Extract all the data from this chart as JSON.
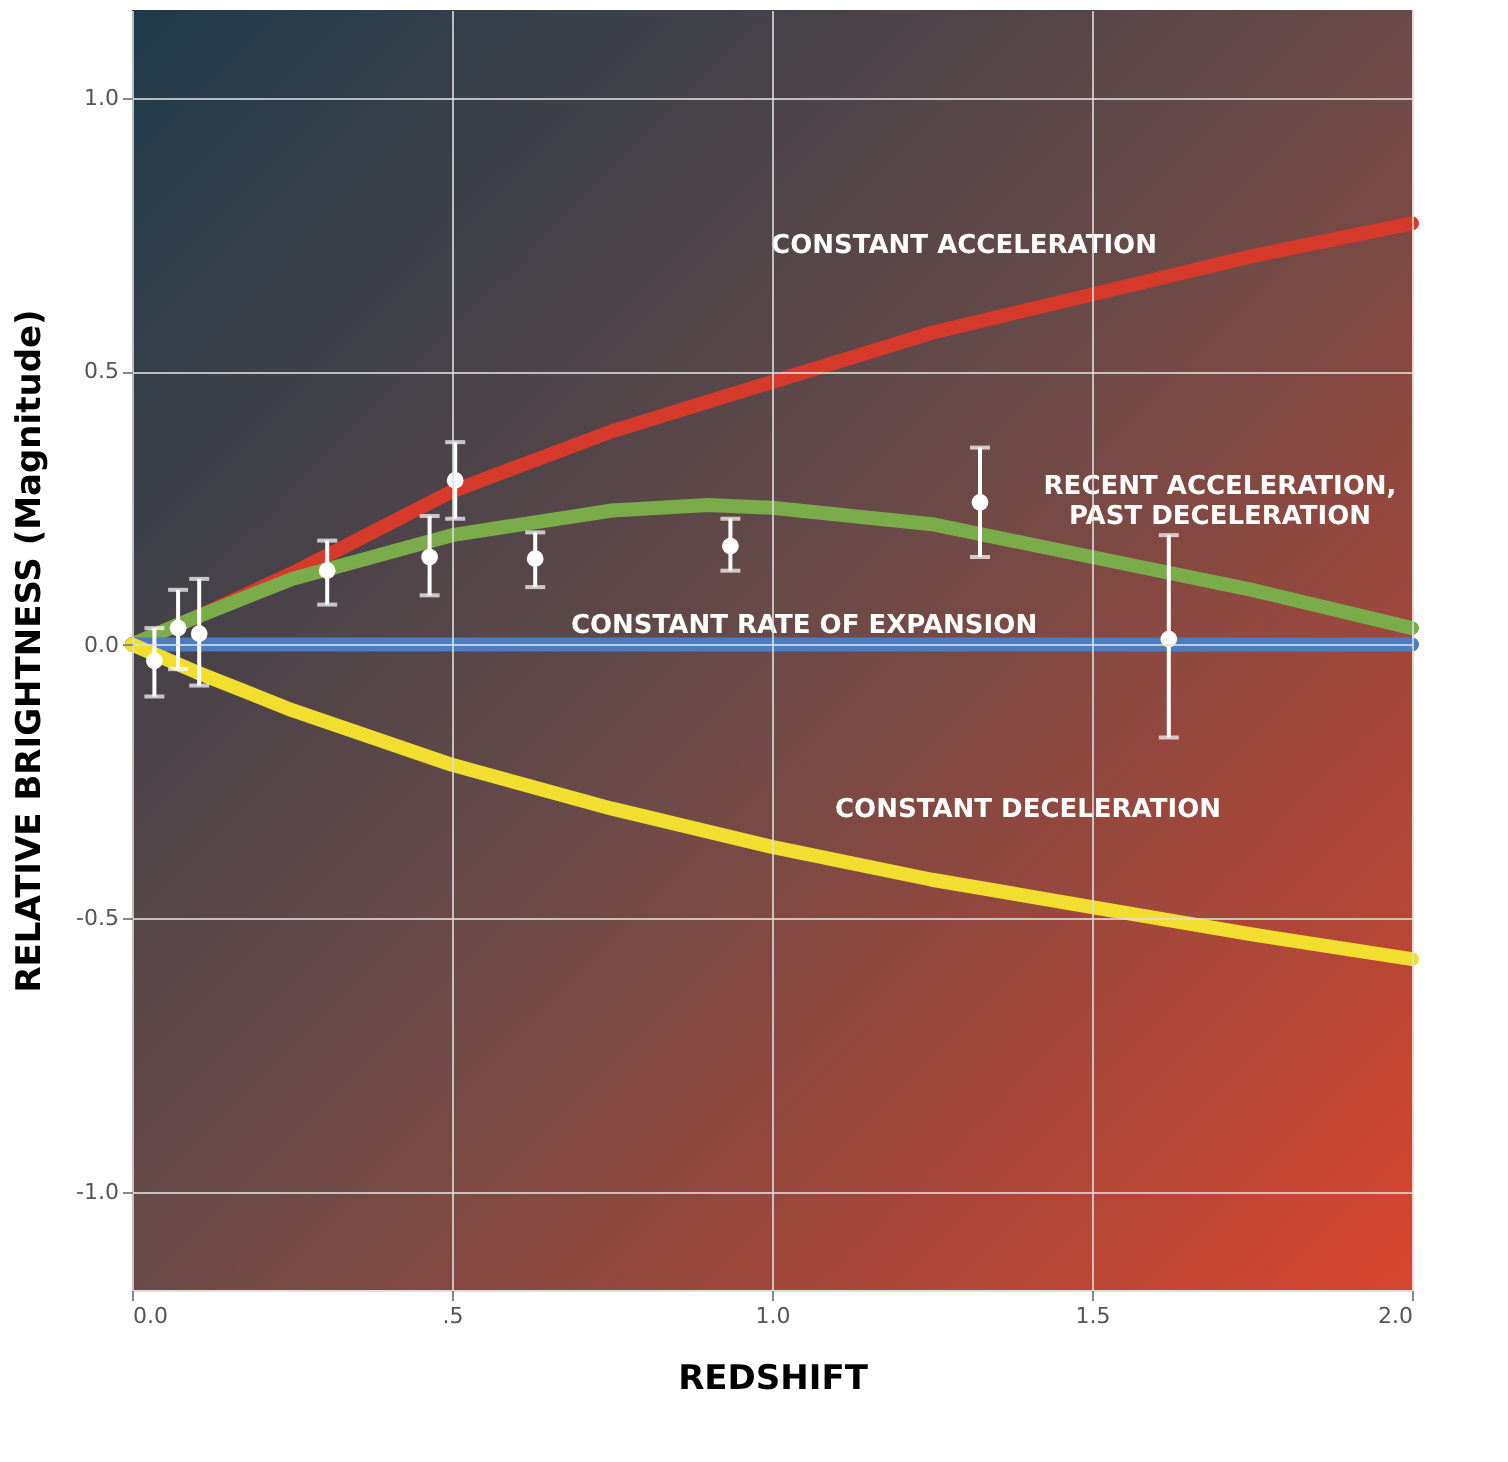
{
  "chart_data": {
    "type": "line",
    "xlabel": "REDSHIFT",
    "ylabel": "RELATIVE BRIGHTNESS (Magnitude)",
    "xlim": [
      0,
      2.0
    ],
    "ylim": [
      -1.18,
      1.16
    ],
    "xticks": [
      {
        "value": 0,
        "label": "0.0"
      },
      {
        "value": 0.5,
        "label": ".5"
      },
      {
        "value": 1.0,
        "label": "1.0"
      },
      {
        "value": 1.5,
        "label": "1.5"
      },
      {
        "value": 2.0,
        "label": "2.0"
      }
    ],
    "yticks": [
      {
        "value": -1.0,
        "label": "-1.0"
      },
      {
        "value": -0.5,
        "label": "-0.5"
      },
      {
        "value": 0,
        "label": "0.0"
      },
      {
        "value": 0.5,
        "label": "0.5"
      },
      {
        "value": 1.0,
        "label": "1.0"
      }
    ],
    "grid": true,
    "series": [
      {
        "name": "CONSTANT ACCELERATION",
        "color": "#d63a2a",
        "x": [
          0,
          0.1,
          0.25,
          0.5,
          0.75,
          1.0,
          1.25,
          1.5,
          1.75,
          2.0
        ],
        "values": [
          0,
          0.05,
          0.13,
          0.28,
          0.39,
          0.48,
          0.57,
          0.64,
          0.71,
          0.77
        ]
      },
      {
        "name": "RECENT ACCELERATION,\nPAST DECELERATION",
        "color": "#7aad4a",
        "x": [
          0,
          0.1,
          0.25,
          0.5,
          0.75,
          0.9,
          1.0,
          1.25,
          1.5,
          1.75,
          2.0
        ],
        "values": [
          0,
          0.05,
          0.12,
          0.2,
          0.245,
          0.255,
          0.25,
          0.22,
          0.16,
          0.1,
          0.03
        ]
      },
      {
        "name": "CONSTANT RATE OF EXPANSION",
        "color": "#4a7ec0",
        "x": [
          0,
          2.0
        ],
        "values": [
          0,
          0
        ]
      },
      {
        "name": "CONSTANT DECELERATION",
        "color": "#f2de2e",
        "x": [
          0,
          0.1,
          0.25,
          0.5,
          0.75,
          1.0,
          1.25,
          1.5,
          1.75,
          2.0
        ],
        "values": [
          0,
          -0.05,
          -0.12,
          -0.22,
          -0.3,
          -0.37,
          -0.43,
          -0.48,
          -0.53,
          -0.575
        ]
      },
      {
        "type": "scatter",
        "color": "#ffffff",
        "x": [
          0.035,
          0.072,
          0.105,
          0.305,
          0.465,
          0.505,
          0.63,
          0.935,
          1.325,
          1.62
        ],
        "values": [
          -0.03,
          0.03,
          0.02,
          0.135,
          0.16,
          0.3,
          0.157,
          0.18,
          0.26,
          0.01
        ],
        "errors": [
          [
            -0.095,
            0.03
          ],
          [
            -0.045,
            0.1
          ],
          [
            -0.075,
            0.12
          ],
          [
            0.073,
            0.19
          ],
          [
            0.09,
            0.235
          ],
          [
            0.23,
            0.37
          ],
          [
            0.105,
            0.205
          ],
          [
            0.135,
            0.23
          ],
          [
            0.16,
            0.36
          ],
          [
            -0.17,
            0.2
          ]
        ]
      }
    ]
  }
}
